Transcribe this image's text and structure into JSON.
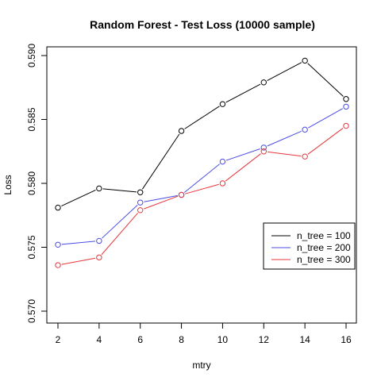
{
  "chart_data": {
    "type": "line",
    "title": "Random Forest - Test Loss (10000 sample)",
    "xlabel": "mtry",
    "ylabel": "Loss",
    "x": [
      2,
      4,
      6,
      8,
      10,
      12,
      14,
      16
    ],
    "xlim": [
      2,
      16
    ],
    "ylim": [
      0.57,
      0.59
    ],
    "xticks": [
      2,
      4,
      6,
      8,
      10,
      12,
      14,
      16
    ],
    "xtick_labels": [
      "2",
      "4",
      "6",
      "8",
      "10",
      "12",
      "14",
      "16"
    ],
    "yticks": [
      0.57,
      0.575,
      0.58,
      0.585,
      0.59
    ],
    "ytick_labels": [
      "0.570",
      "0.575",
      "0.580",
      "0.585",
      "0.590"
    ],
    "grid": false,
    "legend_position": "right",
    "series": [
      {
        "name": "n_tree = 100",
        "color": "#000000",
        "values": [
          0.5781,
          0.5796,
          0.5793,
          0.5841,
          0.5862,
          0.5879,
          0.5896,
          0.5866
        ]
      },
      {
        "name": "n_tree = 200",
        "color": "#4B4BE6",
        "values": [
          0.5752,
          0.5755,
          0.5785,
          0.5791,
          0.5817,
          0.5828,
          0.5842,
          0.586
        ]
      },
      {
        "name": "n_tree = 300",
        "color": "#E6363B",
        "values": [
          0.5736,
          0.5742,
          0.5779,
          0.5791,
          0.58,
          0.5825,
          0.5821,
          0.5845
        ]
      }
    ]
  }
}
